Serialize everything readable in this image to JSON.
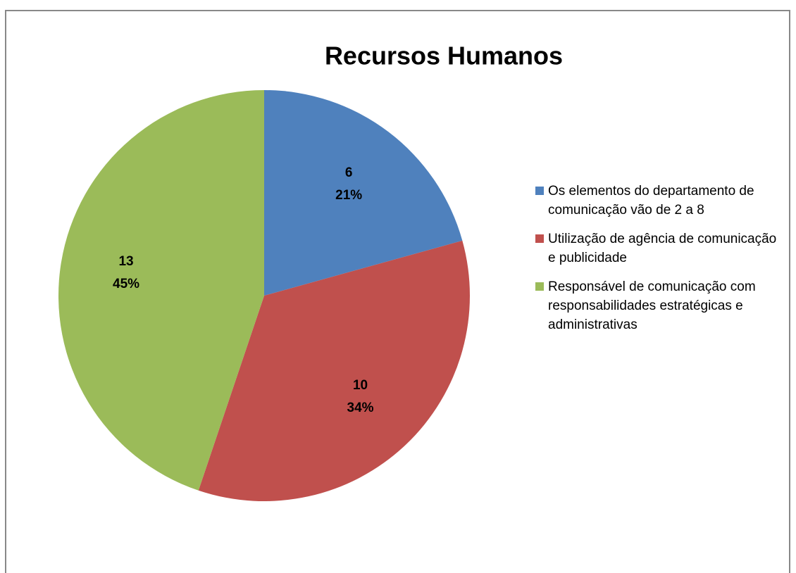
{
  "chart_data": {
    "type": "pie",
    "title": "Recursos Humanos",
    "categories": [
      "Os elementos do departamento de comunicação vão de 2 a 8",
      "Utilização de agência de comunicação e publicidade",
      "Responsável de comunicação com responsabilidades estratégicas e administrativas"
    ],
    "values": [
      6,
      10,
      13
    ],
    "percent_labels": [
      "21%",
      "34%",
      "45%"
    ],
    "colors": [
      "#4f81bd",
      "#c0504d",
      "#9bbb59"
    ],
    "legend": "right"
  }
}
